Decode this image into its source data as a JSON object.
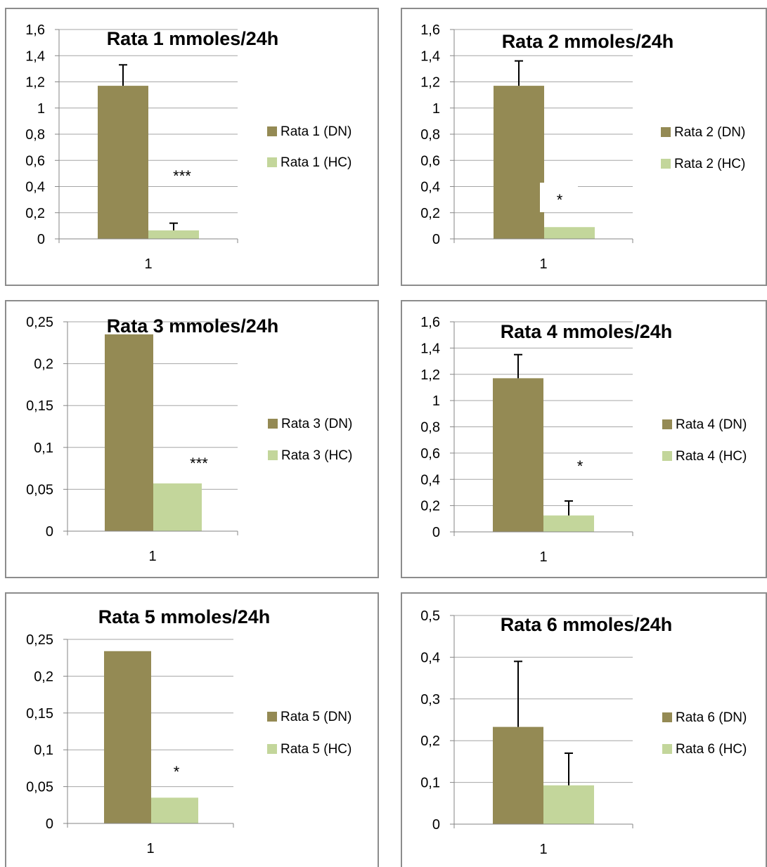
{
  "colors": {
    "dn": "#948a54",
    "hc": "#c3d69b",
    "axis": "#868686",
    "grid": "#a6a6a6",
    "frame": "#8c8c8c",
    "text": "#000000"
  },
  "chart_data": [
    {
      "type": "bar",
      "title": "Rata 1 mmoles/24h",
      "categories": [
        "1"
      ],
      "series": [
        {
          "name": "Rata 1 (DN)",
          "values": [
            1.17
          ],
          "error": [
            0.16
          ]
        },
        {
          "name": "Rata 1 (HC)",
          "values": [
            0.065
          ],
          "error": [
            0.055
          ]
        }
      ],
      "ylim": [
        0,
        1.6
      ],
      "yticks": [
        "0",
        "0,2",
        "0,4",
        "0,6",
        "0,8",
        "1",
        "1,2",
        "1,4",
        "1,6"
      ],
      "significance": "***",
      "legend": "right"
    },
    {
      "type": "bar",
      "title": "Rata 2 mmoles/24h",
      "categories": [
        "1"
      ],
      "series": [
        {
          "name": "Rata 2 (DN)",
          "values": [
            1.17
          ],
          "error": [
            0.19
          ]
        },
        {
          "name": "Rata 2 (HC)",
          "values": [
            0.09
          ],
          "error": [
            0
          ]
        }
      ],
      "ylim": [
        0,
        1.6
      ],
      "yticks": [
        "0",
        "0,2",
        "0,4",
        "0,6",
        "0,8",
        "1",
        "1,2",
        "1,4",
        "1,6"
      ],
      "significance": "*",
      "legend": "right"
    },
    {
      "type": "bar",
      "title": "Rata 3 mmoles/24h",
      "categories": [
        "1"
      ],
      "series": [
        {
          "name": "Rata 3 (DN)",
          "values": [
            0.235
          ],
          "error": [
            0
          ]
        },
        {
          "name": "Rata 3 (HC)",
          "values": [
            0.057
          ],
          "error": [
            0
          ]
        }
      ],
      "ylim": [
        0,
        0.25
      ],
      "yticks": [
        "0",
        "0,05",
        "0,1",
        "0,15",
        "0,2",
        "0,25"
      ],
      "significance": "***",
      "legend": "right"
    },
    {
      "type": "bar",
      "title": "Rata 4 mmoles/24h",
      "categories": [
        "1"
      ],
      "series": [
        {
          "name": "Rata 4 (DN)",
          "values": [
            1.17
          ],
          "error": [
            0.18
          ]
        },
        {
          "name": "Rata 4 (HC)",
          "values": [
            0.125
          ],
          "error": [
            0.11
          ]
        }
      ],
      "ylim": [
        0,
        1.6
      ],
      "yticks": [
        "0",
        "0,2",
        "0,4",
        "0,6",
        "0,8",
        "1",
        "1,2",
        "1,4",
        "1,6"
      ],
      "significance": "*",
      "legend": "right"
    },
    {
      "type": "bar",
      "title": "Rata 5 mmoles/24h",
      "categories": [
        "1"
      ],
      "series": [
        {
          "name": "Rata 5 (DN)",
          "values": [
            0.234
          ],
          "error": [
            0
          ]
        },
        {
          "name": "Rata 5 (HC)",
          "values": [
            0.035
          ],
          "error": [
            0
          ]
        }
      ],
      "ylim": [
        0,
        0.25
      ],
      "yticks": [
        "0",
        "0,05",
        "0,1",
        "0,15",
        "0,2",
        "0,25"
      ],
      "significance": "*",
      "legend": "right"
    },
    {
      "type": "bar",
      "title": "Rata 6 mmoles/24h",
      "categories": [
        "1"
      ],
      "series": [
        {
          "name": "Rata 6 (DN)",
          "values": [
            0.233
          ],
          "error": [
            0.157
          ]
        },
        {
          "name": "Rata 6 (HC)",
          "values": [
            0.093
          ],
          "error": [
            0.077
          ]
        }
      ],
      "ylim": [
        0,
        0.5
      ],
      "yticks": [
        "0",
        "0,1",
        "0,2",
        "0,3",
        "0,4",
        "0,5"
      ],
      "significance": "",
      "legend": "right"
    }
  ]
}
